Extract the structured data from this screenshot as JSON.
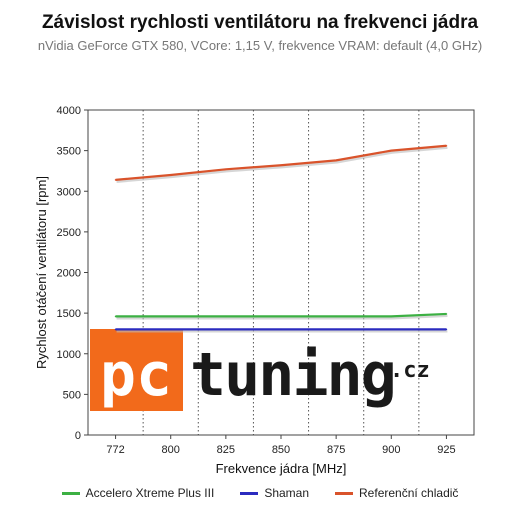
{
  "chart_data": {
    "type": "line",
    "title": "Závislost rychlosti ventilátoru na frekvenci jádra",
    "subtitle": "nVidia GeForce GTX 580, VCore: 1,15 V, frekvence VRAM: default (4,0 GHz)",
    "xlabel": "Frekvence jádra [MHz]",
    "ylabel": "Rychlost otáčení ventilátoru [rpm]",
    "categories": [
      "772",
      "800",
      "825",
      "850",
      "875",
      "900",
      "925"
    ],
    "ylim": [
      0,
      4000
    ],
    "yticks": [
      "0",
      "500",
      "1000",
      "1500",
      "2000",
      "2500",
      "3000",
      "3500",
      "4000"
    ],
    "grid": "vertical dotted",
    "legend_position": "bottom",
    "series": [
      {
        "name": "Accelero Xtreme Plus III",
        "color": "#3cb043",
        "values": [
          1460,
          1460,
          1460,
          1460,
          1460,
          1460,
          1490
        ]
      },
      {
        "name": "Shaman",
        "color": "#2b2bbf",
        "values": [
          1300,
          1300,
          1300,
          1300,
          1300,
          1300,
          1300
        ]
      },
      {
        "name": "Referenční chladič",
        "color": "#d9532b",
        "values": [
          3140,
          3200,
          3270,
          3320,
          3380,
          3500,
          3560
        ]
      }
    ]
  },
  "watermark": {
    "text": "pctuning.cz",
    "color": "#f26a1b"
  }
}
